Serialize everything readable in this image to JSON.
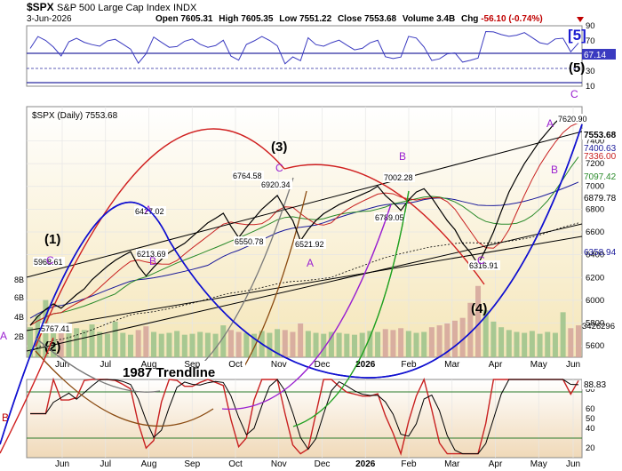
{
  "header": {
    "ticker": "$SPX",
    "name": "S&P 500 Large Cap Index",
    "exchange": "INDX",
    "date": "3-Jun-2026",
    "open_label": "Open",
    "open": "7605.31",
    "high_label": "High",
    "high": "7605.35",
    "low_label": "Low",
    "low": "7551.22",
    "close_label": "Close",
    "close": "7553.68",
    "volume_label": "Volume",
    "volume": "3.4B",
    "chg_label": "Chg",
    "chg": "-56.10 (-0.74%)"
  },
  "top_panel": {
    "last_value": "67.14",
    "ticks": [
      "90",
      "70",
      "50",
      "30",
      "10"
    ]
  },
  "main_panel": {
    "legend": "$SPX (Daily) 7553.68",
    "price_ticks": [
      "7400",
      "7200",
      "7000",
      "6800",
      "6600",
      "6400",
      "6200",
      "6000",
      "5800",
      "5600"
    ],
    "price_labels": [
      "7553.68",
      "7400.63",
      "7336.00",
      "7097.42",
      "6879.78",
      "6358.94"
    ],
    "volume_label": "3426296",
    "volume_ticks": [
      "8B",
      "6B",
      "4B",
      "2B"
    ],
    "annotations": [
      "5968.61",
      "5767.41",
      "6427.02",
      "6213.69",
      "6764.58",
      "6550.78",
      "6920.34",
      "6521.92",
      "7002.28",
      "6789.05",
      "6316.91",
      "7620.90"
    ],
    "waves": {
      "w1": "(1)",
      "w2": "(2)",
      "w3": "(3)",
      "w4": "(4)",
      "w5": "(5)",
      "w5big": "[5]",
      "c1": "C",
      "b1": "B",
      "a1": "A",
      "c2": "C",
      "a2": "A",
      "b2": "B",
      "c3": "C",
      "a3": "A",
      "b3": "B",
      "c_top": "C",
      "a_left": "A",
      "b_left": "B"
    },
    "trendline": "1987 Trendline"
  },
  "bottom_panel": {
    "last_value": "88.83",
    "ticks": [
      "80",
      "60",
      "50",
      "40",
      "20"
    ]
  },
  "xaxis": {
    "upper": [
      "Jun",
      "Jul",
      "Aug",
      "Sep",
      "Oct",
      "Nov",
      "Dec",
      "2026",
      "Feb",
      "Mar",
      "Apr",
      "May",
      "Jun"
    ],
    "lower": [
      "Jun",
      "Jul",
      "Aug",
      "Sep",
      "Oct",
      "Nov",
      "Dec",
      "2026",
      "Feb",
      "Mar",
      "Apr",
      "May",
      "Jun"
    ]
  },
  "chart_data": {
    "type": "line",
    "title": "$SPX S&P 500 Large Cap Index",
    "ylabel": "",
    "price_range": [
      5500,
      7700
    ],
    "swing_points": [
      {
        "date": "Jun-2025",
        "value": 5767.41
      },
      {
        "date": "Jun-2025",
        "value": 5968.61
      },
      {
        "date": "Aug-2025",
        "value": 6427.02
      },
      {
        "date": "Aug-2025",
        "value": 6213.69
      },
      {
        "date": "Oct-2025",
        "value": 6764.58
      },
      {
        "date": "Oct-2025",
        "value": 6550.78
      },
      {
        "date": "Nov-2025",
        "value": 6920.34
      },
      {
        "date": "Nov-2025",
        "value": 6521.92
      },
      {
        "date": "Feb-2026",
        "value": 7002.28
      },
      {
        "date": "Feb-2026",
        "value": 6789.05
      },
      {
        "date": "Mar-2026",
        "value": 6316.91
      },
      {
        "date": "Jun-2026",
        "value": 7620.9
      },
      {
        "date": "3-Jun-2026",
        "value": 7553.68
      }
    ],
    "price": [
      5780,
      5860,
      5920,
      5968,
      5930,
      5990,
      6050,
      6100,
      6180,
      6240,
      6300,
      6350,
      6390,
      6427,
      6300,
      6214,
      6290,
      6360,
      6420,
      6460,
      6500,
      6560,
      6620,
      6680,
      6720,
      6764,
      6650,
      6551,
      6640,
      6720,
      6800,
      6860,
      6920,
      6800,
      6700,
      6522,
      6620,
      6700,
      6760,
      6800,
      6840,
      6870,
      6900,
      6930,
      6960,
      7002,
      6920,
      6860,
      6789,
      6880,
      6950,
      6980,
      6900,
      6800,
      6700,
      6620,
      6500,
      6420,
      6317,
      6450,
      6600,
      6780,
      6950,
      7080,
      7200,
      7300,
      7400,
      7480,
      7560,
      7621,
      7580,
      7554
    ],
    "volume_bil": [
      3.2,
      4.5,
      6.1,
      3.0,
      2.6,
      2.8,
      3.1,
      2.9,
      3.5,
      2.7,
      2.5,
      3.8,
      2.6,
      2.4,
      2.9,
      3.3,
      2.7,
      2.5,
      2.6,
      2.8,
      2.4,
      2.5,
      2.7,
      2.6,
      2.5,
      3.4,
      2.9,
      2.7,
      2.6,
      2.5,
      2.8,
      2.6,
      3.0,
      2.9,
      2.7,
      3.6,
      2.8,
      2.6,
      2.5,
      2.7,
      2.6,
      2.5,
      2.4,
      2.6,
      2.8,
      2.7,
      3.0,
      2.9,
      3.1,
      2.8,
      2.6,
      2.7,
      3.2,
      3.4,
      3.6,
      3.9,
      4.2,
      5.8,
      7.6,
      5.0,
      3.8,
      3.2,
      2.9,
      2.7,
      2.6,
      2.8,
      2.5,
      2.7,
      2.6,
      4.8,
      3.1,
      3.4
    ],
    "top_indicator": {
      "last": 67.14,
      "ylim": [
        10,
        90
      ]
    },
    "bottom_indicator": {
      "last": 88.83,
      "ylim": [
        10,
        90
      ]
    }
  }
}
